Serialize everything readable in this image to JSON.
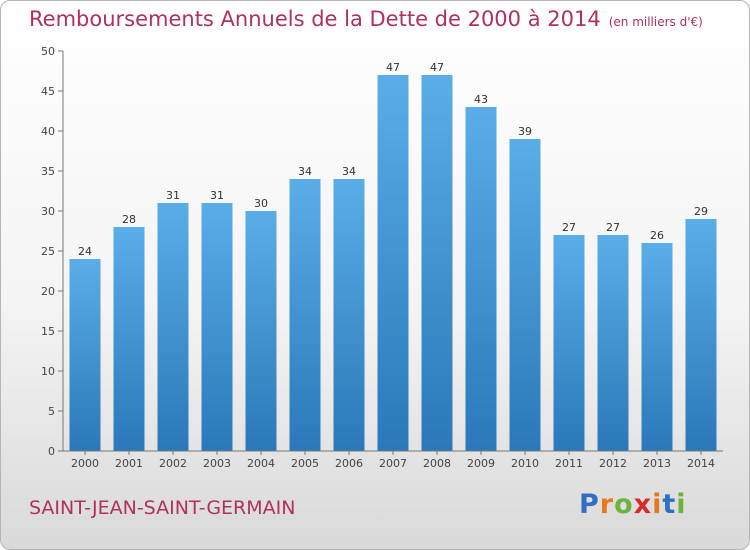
{
  "header": {
    "title": "Remboursements Annuels de la Dette de 2000 à 2014",
    "subtitle": "(en milliers d'€)"
  },
  "footer": {
    "commune": "SAINT-JEAN-SAINT-GERMAIN",
    "logo_text": "Proxiti"
  },
  "colors": {
    "title": "#b03060",
    "bar_top": "#5aaee8",
    "bar_bottom": "#2a78b8"
  },
  "chart_data": {
    "type": "bar",
    "title": "Remboursements Annuels de la Dette de 2000 à 2014",
    "subtitle": "(en milliers d'€)",
    "xlabel": "",
    "ylabel": "",
    "categories": [
      "2000",
      "2001",
      "2002",
      "2003",
      "2004",
      "2005",
      "2006",
      "2007",
      "2008",
      "2009",
      "2010",
      "2011",
      "2012",
      "2013",
      "2014"
    ],
    "values": [
      24,
      28,
      31,
      31,
      30,
      34,
      34,
      47,
      47,
      43,
      39,
      27,
      27,
      26,
      29
    ],
    "ylim": [
      0,
      50
    ],
    "yticks": [
      0,
      5,
      10,
      15,
      20,
      25,
      30,
      35,
      40,
      45,
      50
    ],
    "grid": false
  }
}
